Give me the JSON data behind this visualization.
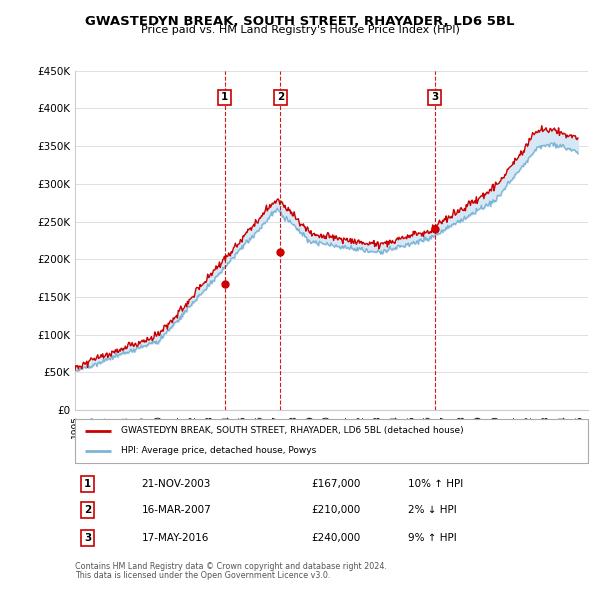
{
  "title": "GWASTEDYN BREAK, SOUTH STREET, RHAYADER, LD6 5BL",
  "subtitle": "Price paid vs. HM Land Registry's House Price Index (HPI)",
  "ylim": [
    0,
    450000
  ],
  "yticks": [
    0,
    50000,
    100000,
    150000,
    200000,
    250000,
    300000,
    350000,
    400000,
    450000
  ],
  "ytick_labels": [
    "£0",
    "£50K",
    "£100K",
    "£150K",
    "£200K",
    "£250K",
    "£300K",
    "£350K",
    "£400K",
    "£450K"
  ],
  "xlim_start": 1995.0,
  "xlim_end": 2025.5,
  "line_color_red": "#cc0000",
  "line_color_blue": "#7eb4d4",
  "fill_color": "#d6e8f5",
  "grid_color": "#e0e0e0",
  "transactions": [
    {
      "num": 1,
      "date": "21-NOV-2003",
      "price": 167000,
      "year": 2003.89
    },
    {
      "num": 2,
      "date": "16-MAR-2007",
      "price": 210000,
      "year": 2007.21
    },
    {
      "num": 3,
      "date": "17-MAY-2016",
      "price": 240000,
      "year": 2016.38
    }
  ],
  "legend_line1": "GWASTEDYN BREAK, SOUTH STREET, RHAYADER, LD6 5BL (detached house)",
  "legend_line2": "HPI: Average price, detached house, Powys",
  "footnote1": "Contains HM Land Registry data © Crown copyright and database right 2024.",
  "footnote2": "This data is licensed under the Open Government Licence v3.0.",
  "table_rows": [
    {
      "num": "1",
      "date": "21-NOV-2003",
      "price": "£167,000",
      "hpi": "10% ↑ HPI"
    },
    {
      "num": "2",
      "date": "16-MAR-2007",
      "price": "£210,000",
      "hpi": "2% ↓ HPI"
    },
    {
      "num": "3",
      "date": "17-MAY-2016",
      "price": "£240,000",
      "hpi": "9% ↑ HPI"
    }
  ]
}
